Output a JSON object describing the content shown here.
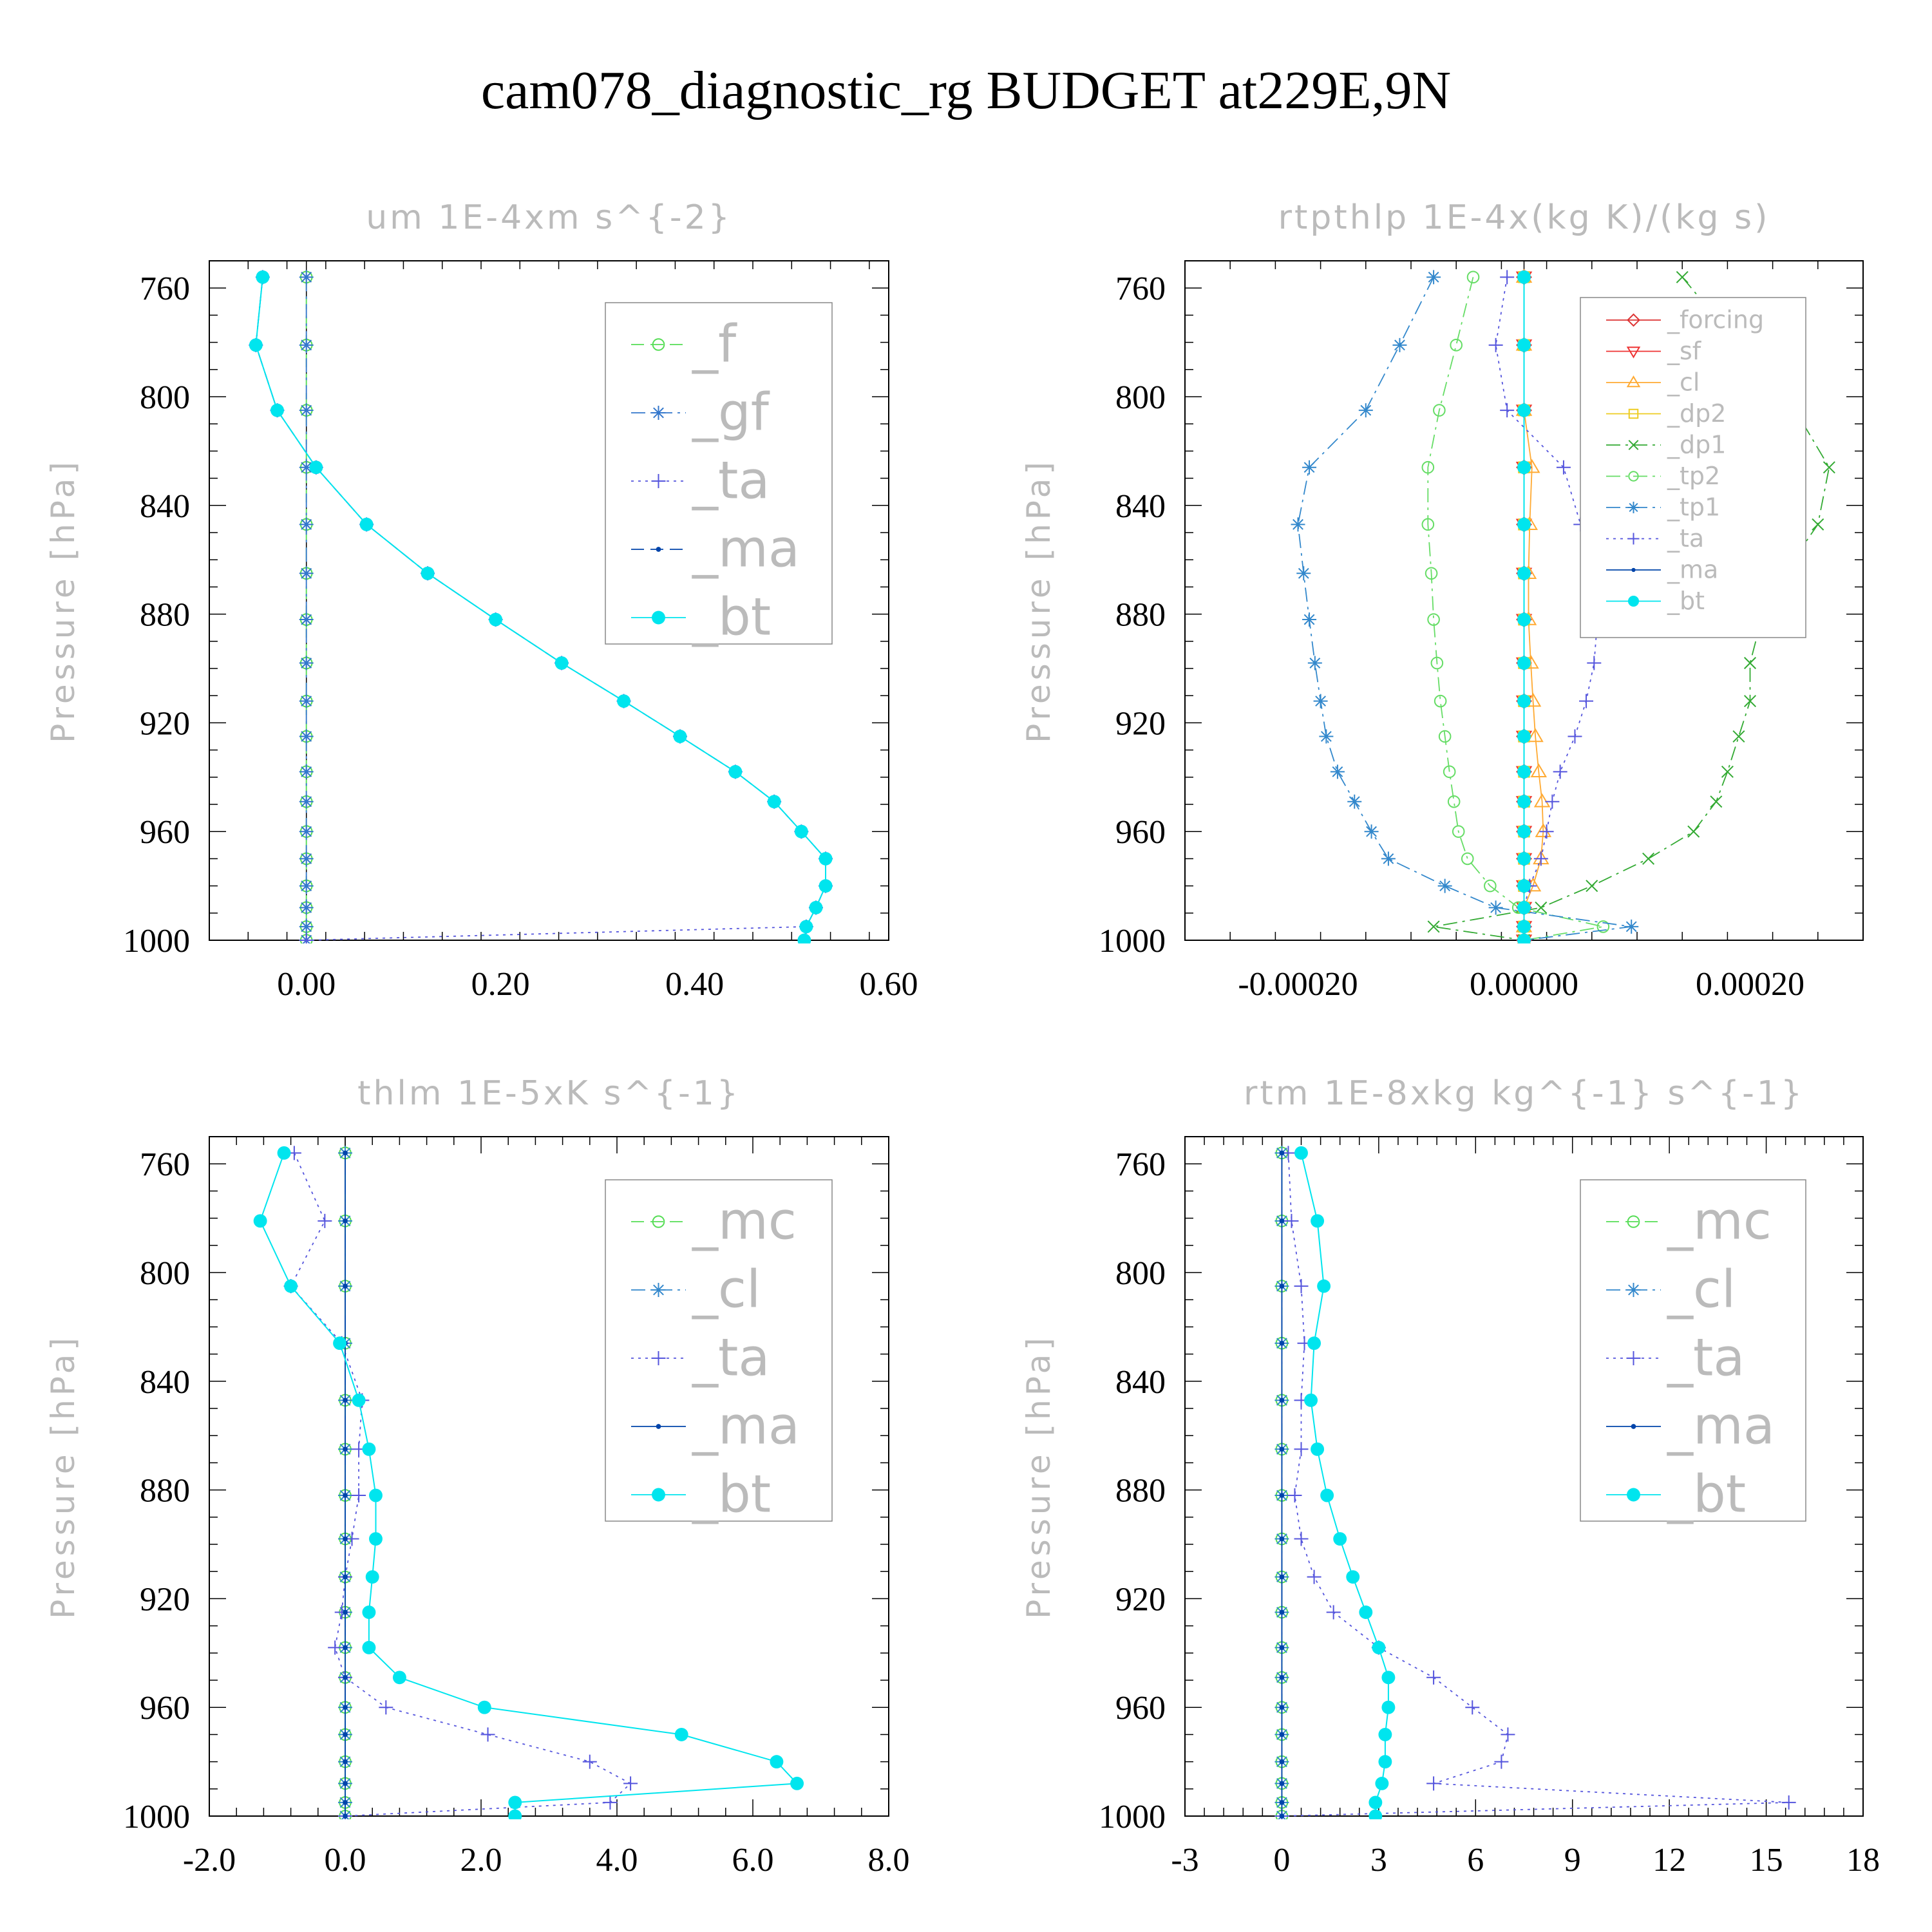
{
  "title": "cam078_diagnostic_rg  BUDGET at229E,9N",
  "chart_data": [
    {
      "type": "line",
      "title": "um   1E-4xm s^{-2}",
      "ylabel": "Pressure [hPa]",
      "xlabel": "",
      "xlim": [
        -0.1,
        0.6
      ],
      "ylim": [
        750,
        1000
      ],
      "y_inverted": true,
      "xticks": [
        0.0,
        0.2,
        0.4,
        0.6
      ],
      "xtick_labels": [
        "0.00",
        "0.20",
        "0.40",
        "0.60"
      ],
      "yticks": [
        760,
        800,
        840,
        880,
        920,
        960,
        1000
      ],
      "ytick_labels": [
        "760",
        "800",
        "840",
        "880",
        "920",
        "960",
        "1000"
      ],
      "legend": "right, upper",
      "y": [
        756,
        781,
        805,
        826,
        847,
        865,
        882,
        898,
        912,
        925,
        938,
        949,
        960,
        970,
        980,
        988,
        995,
        1000
      ],
      "series": [
        {
          "name": "_f",
          "color": "#55dd55",
          "marker": "circle-open",
          "dash": "dash",
          "values": [
            0,
            0,
            0,
            0,
            0,
            0,
            0,
            0,
            0,
            0,
            0,
            0,
            0,
            0,
            0,
            0,
            0,
            0
          ]
        },
        {
          "name": "_gf",
          "color": "#3377cc",
          "marker": "star",
          "dash": "dashdot",
          "values": [
            0,
            0,
            0,
            0,
            0,
            0,
            0,
            0,
            0,
            0,
            0,
            0,
            0,
            0,
            0,
            0,
            0,
            0
          ]
        },
        {
          "name": "_ta",
          "color": "#5555dd",
          "marker": "plus",
          "dash": "dot",
          "values": [
            -0.045,
            -0.052,
            -0.03,
            0.01,
            0.062,
            0.125,
            0.195,
            0.263,
            0.327,
            0.385,
            0.442,
            0.482,
            0.51,
            0.535,
            0.535,
            0.525,
            0.515,
            0
          ]
        },
        {
          "name": "_ma",
          "color": "#0044aa",
          "marker": "dot-small",
          "dash": "dash",
          "values": [
            -0.045,
            -0.052,
            -0.03,
            0.01,
            0.062,
            0.125,
            0.195,
            0.263,
            0.327,
            0.385,
            0.442,
            0.482,
            0.51,
            0.535,
            0.535,
            0.525,
            0.515,
            0.513
          ]
        },
        {
          "name": "_bt",
          "color": "#00e5ee",
          "marker": "dot-filled",
          "dash": "solid",
          "values": [
            -0.045,
            -0.052,
            -0.03,
            0.01,
            0.062,
            0.125,
            0.195,
            0.263,
            0.327,
            0.385,
            0.442,
            0.482,
            0.51,
            0.535,
            0.535,
            0.525,
            0.515,
            0.513
          ]
        }
      ]
    },
    {
      "type": "line",
      "title": "rtpthlp   1E-4x(kg K)/(kg s)",
      "ylabel": "Pressure [hPa]",
      "xlabel": "",
      "xlim": [
        -0.0003,
        0.0003
      ],
      "ylim": [
        750,
        1000
      ],
      "y_inverted": true,
      "xticks": [
        -0.0002,
        0.0,
        0.0002
      ],
      "xtick_labels": [
        "-0.00020",
        "0.00000",
        "0.00020"
      ],
      "yticks": [
        760,
        800,
        840,
        880,
        920,
        960,
        1000
      ],
      "ytick_labels": [
        "760",
        "800",
        "840",
        "880",
        "920",
        "960",
        "1000"
      ],
      "legend": "right, upper",
      "y": [
        756,
        781,
        805,
        826,
        847,
        865,
        882,
        898,
        912,
        925,
        938,
        949,
        960,
        970,
        980,
        988,
        995,
        1000
      ],
      "series": [
        {
          "name": "_forcing",
          "color": "#dd3333",
          "marker": "diamond-open",
          "dash": "solid",
          "values": [
            0,
            0,
            0,
            0,
            0,
            0,
            0,
            0,
            0,
            0,
            0,
            0,
            0,
            0,
            0,
            0,
            0,
            0
          ]
        },
        {
          "name": "_sf",
          "color": "#ee3333",
          "marker": "triangle-down-open",
          "dash": "solid",
          "values": [
            0,
            0,
            0,
            0,
            0,
            0,
            0,
            0,
            0,
            0,
            0,
            0,
            0,
            0,
            0,
            0,
            0,
            0
          ]
        },
        {
          "name": "_cl",
          "color": "#ffaa33",
          "marker": "triangle-up-open",
          "dash": "solid",
          "values": [
            0,
            0,
            0,
            7e-06,
            5e-06,
            4e-06,
            4e-06,
            6e-06,
            8e-06,
            1e-05,
            1.3e-05,
            1.6e-05,
            1.7e-05,
            1.5e-05,
            8e-06,
            0,
            0,
            0
          ]
        },
        {
          "name": "_dp2",
          "color": "#eecc22",
          "marker": "square-open",
          "dash": "solid",
          "values": [
            0,
            0,
            0,
            0,
            0,
            0,
            0,
            0,
            0,
            0,
            0,
            0,
            0,
            0,
            0,
            0,
            0,
            0
          ]
        },
        {
          "name": "_dp1",
          "color": "#33aa33",
          "marker": "cross",
          "dash": "dashdot",
          "values": [
            0.00014,
            0.00019,
            0.00024,
            0.00027,
            0.00026,
            0.00023,
            0.00021,
            0.0002,
            0.0002,
            0.00019,
            0.00018,
            0.00017,
            0.00015,
            0.00011,
            6e-05,
            1.5e-05,
            -8e-05,
            0
          ]
        },
        {
          "name": "_tp2",
          "color": "#66dd66",
          "marker": "circle-open",
          "dash": "dashdot",
          "values": [
            -4.5e-05,
            -6e-05,
            -7.5e-05,
            -8.5e-05,
            -8.5e-05,
            -8.2e-05,
            -8e-05,
            -7.7e-05,
            -7.4e-05,
            -7e-05,
            -6.6e-05,
            -6.2e-05,
            -5.8e-05,
            -5e-05,
            -3e-05,
            -5e-06,
            7e-05,
            0
          ]
        },
        {
          "name": "_tp1",
          "color": "#3388cc",
          "marker": "star",
          "dash": "dashdot",
          "values": [
            -8e-05,
            -0.00011,
            -0.00014,
            -0.00019,
            -0.0002,
            -0.000195,
            -0.00019,
            -0.000185,
            -0.00018,
            -0.000175,
            -0.000165,
            -0.00015,
            -0.000135,
            -0.00012,
            -7e-05,
            -2.5e-05,
            9.5e-05,
            0
          ]
        },
        {
          "name": "_ta",
          "color": "#5555dd",
          "marker": "plus",
          "dash": "dot",
          "values": [
            -1.5e-05,
            -2.5e-05,
            -1.5e-05,
            3.5e-05,
            5e-05,
            6e-05,
            6.5e-05,
            6.2e-05,
            5.5e-05,
            4.5e-05,
            3.2e-05,
            2.5e-05,
            2e-05,
            1.5e-05,
            5e-06,
            0,
            0,
            0
          ]
        },
        {
          "name": "_ma",
          "color": "#0044aa",
          "marker": "dot-small",
          "dash": "solid",
          "values": [
            0,
            0,
            0,
            0,
            0,
            0,
            0,
            0,
            0,
            0,
            0,
            0,
            0,
            0,
            0,
            0,
            0,
            0
          ]
        },
        {
          "name": "_bt",
          "color": "#00e5ee",
          "marker": "dot-filled",
          "dash": "solid",
          "values": [
            0,
            0,
            0,
            0,
            0,
            0,
            0,
            0,
            0,
            0,
            0,
            0,
            0,
            0,
            0,
            0,
            0,
            0
          ]
        }
      ]
    },
    {
      "type": "line",
      "title": "thlm   1E-5xK s^{-1}",
      "ylabel": "Pressure [hPa]",
      "xlabel": "",
      "xlim": [
        -2.0,
        8.0
      ],
      "ylim": [
        750,
        1000
      ],
      "y_inverted": true,
      "xticks": [
        -2.0,
        0.0,
        2.0,
        4.0,
        6.0,
        8.0
      ],
      "xtick_labels": [
        "-2.0",
        "0.0",
        "2.0",
        "4.0",
        "6.0",
        "8.0"
      ],
      "yticks": [
        760,
        800,
        840,
        880,
        920,
        960,
        1000
      ],
      "ytick_labels": [
        "760",
        "800",
        "840",
        "880",
        "920",
        "960",
        "1000"
      ],
      "legend": "right, upper",
      "y": [
        756,
        781,
        805,
        826,
        847,
        865,
        882,
        898,
        912,
        925,
        938,
        949,
        960,
        970,
        980,
        988,
        995,
        1000
      ],
      "series": [
        {
          "name": "_mc",
          "color": "#55dd55",
          "marker": "circle-open",
          "dash": "dash",
          "values": [
            0,
            0,
            0,
            0,
            0,
            0,
            0,
            0,
            0,
            0,
            0,
            0,
            0,
            0,
            0,
            0,
            0,
            0
          ]
        },
        {
          "name": "_cl",
          "color": "#3388cc",
          "marker": "star",
          "dash": "dashdot",
          "values": [
            0,
            0,
            0,
            0,
            0,
            0,
            0,
            0,
            0,
            0,
            0,
            0,
            0,
            0,
            0,
            0,
            0,
            0
          ]
        },
        {
          "name": "_ta",
          "color": "#5555dd",
          "marker": "plus",
          "dash": "dot",
          "values": [
            -0.75,
            -0.3,
            -0.8,
            -0.05,
            0.25,
            0.2,
            0.2,
            0.1,
            0.0,
            -0.05,
            -0.15,
            0.0,
            0.6,
            2.1,
            3.6,
            4.2,
            3.9,
            0
          ]
        },
        {
          "name": "_ma",
          "color": "#0044aa",
          "marker": "dot-small",
          "dash": "solid",
          "values": [
            0,
            0,
            0,
            0,
            0,
            0,
            0,
            0,
            0,
            0,
            0,
            0,
            0,
            0,
            0,
            0,
            0,
            0
          ]
        },
        {
          "name": "_bt",
          "color": "#00e5ee",
          "marker": "dot-filled",
          "dash": "solid",
          "values": [
            -0.9,
            -1.25,
            -0.8,
            -0.08,
            0.2,
            0.35,
            0.45,
            0.45,
            0.4,
            0.35,
            0.35,
            0.8,
            2.05,
            4.95,
            6.35,
            6.65,
            2.5,
            2.5
          ]
        }
      ]
    },
    {
      "type": "line",
      "title": "rtm   1E-8xkg kg^{-1} s^{-1}",
      "ylabel": "Pressure [hPa]",
      "xlabel": "",
      "xlim": [
        -3,
        18
      ],
      "ylim": [
        750,
        1000
      ],
      "y_inverted": true,
      "xticks": [
        -3,
        0,
        3,
        6,
        9,
        12,
        15,
        18
      ],
      "xtick_labels": [
        "-3",
        "0",
        "3",
        "6",
        "9",
        "12",
        "15",
        "18"
      ],
      "yticks": [
        760,
        800,
        840,
        880,
        920,
        960,
        1000
      ],
      "ytick_labels": [
        "760",
        "800",
        "840",
        "880",
        "920",
        "960",
        "1000"
      ],
      "legend": "right, upper",
      "y": [
        756,
        781,
        805,
        826,
        847,
        865,
        882,
        898,
        912,
        925,
        938,
        949,
        960,
        970,
        980,
        988,
        995,
        1000
      ],
      "series": [
        {
          "name": "_mc",
          "color": "#55dd55",
          "marker": "circle-open",
          "dash": "dash",
          "values": [
            0,
            0,
            0,
            0,
            0,
            0,
            0,
            0,
            0,
            0,
            0,
            0,
            0,
            0,
            0,
            0,
            0,
            0
          ]
        },
        {
          "name": "_cl",
          "color": "#3388cc",
          "marker": "star",
          "dash": "dashdot",
          "values": [
            0,
            0,
            0,
            0,
            0,
            0,
            0,
            0,
            0,
            0,
            0,
            0,
            0,
            0,
            0,
            0,
            0,
            0
          ]
        },
        {
          "name": "_ta",
          "color": "#5555dd",
          "marker": "plus",
          "dash": "dot",
          "values": [
            0.2,
            0.3,
            0.6,
            0.7,
            0.6,
            0.6,
            0.4,
            0.6,
            1.0,
            1.6,
            3.0,
            4.7,
            5.9,
            7.0,
            6.8,
            4.7,
            15.7,
            0
          ]
        },
        {
          "name": "_ma",
          "color": "#0044aa",
          "marker": "dot-small",
          "dash": "solid",
          "values": [
            0,
            0,
            0,
            0,
            0,
            0,
            0,
            0,
            0,
            0,
            0,
            0,
            0,
            0,
            0,
            0,
            0,
            0
          ]
        },
        {
          "name": "_bt",
          "color": "#00e5ee",
          "marker": "dot-filled",
          "dash": "solid",
          "values": [
            0.6,
            1.1,
            1.3,
            1.0,
            0.9,
            1.1,
            1.4,
            1.8,
            2.2,
            2.6,
            3.0,
            3.3,
            3.3,
            3.2,
            3.2,
            3.1,
            2.9,
            2.9
          ]
        }
      ]
    }
  ]
}
